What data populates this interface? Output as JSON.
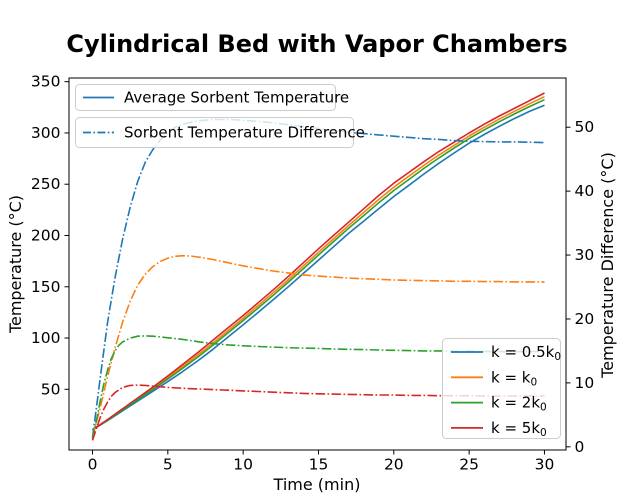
{
  "title": "Cylindrical Bed with Vapor Chambers",
  "chart_data": {
    "type": "line",
    "title": "Cylindrical Bed with Vapor Chambers",
    "xlabel": "Time (min)",
    "ylabel_left": "Temperature (°C)",
    "ylabel_right": "Temperature Difference (°C)",
    "grid": false,
    "xlim": [
      -1.56,
      31.43
    ],
    "ylim_left": [
      -9.2,
      353.6
    ],
    "ylim_right": [
      -0.5,
      57.7
    ],
    "x_ticks": [
      0,
      5,
      10,
      15,
      20,
      25,
      30
    ],
    "x_tick_labels": [
      "0",
      "5",
      "10",
      "15",
      "20",
      "25",
      "30"
    ],
    "y_left_ticks": [
      50,
      100,
      150,
      200,
      250,
      300,
      350
    ],
    "y_left_tick_labels": [
      "50",
      "100",
      "150",
      "200",
      "250",
      "300",
      "350"
    ],
    "y_right_ticks": [
      0,
      10,
      20,
      30,
      40,
      50
    ],
    "y_right_tick_labels": [
      "0",
      "10",
      "20",
      "30",
      "40",
      "50"
    ],
    "colors": {
      "blue": "#1f77b4",
      "orange": "#ff7f0e",
      "green": "#2ca02c",
      "red": "#d62728"
    },
    "legend_styles": {
      "items": [
        {
          "label": "Average Sorbent Temperature",
          "style": "solid"
        },
        {
          "label": "Sorbent Temperature Difference",
          "style": "dashdot"
        }
      ]
    },
    "legend_k": {
      "items": [
        {
          "pre": "k = 0.5k",
          "sub": "0",
          "color": "#1f77b4"
        },
        {
          "pre": "k = k",
          "sub": "0",
          "color": "#ff7f0e"
        },
        {
          "pre": "k = 2k",
          "sub": "0",
          "color": "#2ca02c"
        },
        {
          "pre": "k = 5k",
          "sub": "0",
          "color": "#d62728"
        }
      ]
    },
    "series": [
      {
        "key": "temp-k0p5",
        "label": "k = 0.5k0 average temperature",
        "axis": "left",
        "style": "solid",
        "color": "#1f77b4",
        "t": [
          0,
          1,
          2,
          3,
          4,
          5,
          6,
          7,
          8,
          9,
          10,
          11,
          12,
          13,
          14,
          15,
          16,
          17,
          18,
          19,
          20,
          21,
          22,
          23,
          24,
          25,
          26,
          27,
          28,
          29,
          30
        ],
        "v": [
          10.5,
          19.5,
          29,
          38.5,
          48,
          57.5,
          67.5,
          78,
          89,
          101,
          113,
          125,
          137.5,
          150,
          163,
          176,
          189,
          202,
          214,
          226,
          238,
          249,
          260,
          270.5,
          280.5,
          290,
          298.5,
          306.5,
          314,
          321,
          327
        ]
      },
      {
        "key": "temp-k1",
        "label": "k = k0 average temperature",
        "axis": "left",
        "style": "solid",
        "color": "#ff7f0e",
        "t": [
          0,
          1,
          2,
          3,
          4,
          5,
          6,
          7,
          8,
          9,
          10,
          11,
          12,
          13,
          14,
          15,
          16,
          17,
          18,
          19,
          20,
          21,
          22,
          23,
          24,
          25,
          26,
          27,
          28,
          29,
          30
        ],
        "v": [
          10.5,
          20.2,
          30.4,
          40.6,
          50.8,
          61.4,
          72.4,
          83.6,
          95.3,
          107.3,
          119.3,
          131.7,
          144.2,
          157,
          170.4,
          183.7,
          196.7,
          209.7,
          222.4,
          235.1,
          247.1,
          257.8,
          268.4,
          278.6,
          287.9,
          297,
          305.5,
          313.5,
          321,
          328.4,
          335.4
        ]
      },
      {
        "key": "temp-k2",
        "label": "k = 2k0 average temperature",
        "axis": "left",
        "style": "solid",
        "color": "#2ca02c",
        "t": [
          0,
          1,
          2,
          3,
          4,
          5,
          6,
          7,
          8,
          9,
          10,
          11,
          12,
          13,
          14,
          15,
          16,
          17,
          18,
          19,
          20,
          21,
          22,
          23,
          24,
          25,
          26,
          27,
          28,
          29,
          30
        ],
        "v": [
          10.5,
          20,
          29.9,
          39.9,
          49.8,
          60,
          70.7,
          81.6,
          93.1,
          105.1,
          117.1,
          129.3,
          141.8,
          154.5,
          167.7,
          181,
          194,
          207,
          219.4,
          231.9,
          243.9,
          254.6,
          265.4,
          275.7,
          285.2,
          294.5,
          303,
          311,
          318.5,
          325.7,
          332.4
        ]
      },
      {
        "key": "temp-k5",
        "label": "k = 5k0 average temperature",
        "axis": "left",
        "style": "solid",
        "color": "#d62728",
        "t": [
          0,
          1,
          2,
          3,
          4,
          5,
          6,
          7,
          8,
          9,
          10,
          11,
          12,
          13,
          14,
          15,
          16,
          17,
          18,
          19,
          20,
          21,
          22,
          23,
          24,
          25,
          26,
          27,
          28,
          29,
          30
        ],
        "v": [
          10.5,
          20.5,
          31,
          41.5,
          52,
          63,
          74.5,
          86,
          98,
          110,
          122,
          134.5,
          147,
          160,
          173.5,
          187,
          200,
          213,
          226,
          239,
          251,
          261.5,
          272,
          282,
          291,
          300,
          308.5,
          316.5,
          324,
          331.5,
          339
        ]
      },
      {
        "key": "diff-k0p5",
        "label": "k = 0.5k0 temperature difference",
        "axis": "right",
        "style": "dashdot",
        "color": "#1f77b4",
        "t": [
          0,
          0.25,
          0.5,
          0.75,
          1,
          1.25,
          1.5,
          2,
          2.5,
          3,
          3.5,
          4,
          4.5,
          5,
          5.5,
          6,
          7,
          8,
          9,
          10,
          11,
          12,
          13,
          14,
          15,
          16,
          17,
          18,
          19,
          20,
          21,
          22,
          23,
          24,
          25,
          26,
          27,
          28,
          29,
          30
        ],
        "v": [
          1.5,
          6,
          10.5,
          15,
          19.5,
          23,
          26.5,
          32.5,
          37.5,
          41.5,
          44.5,
          46.5,
          48,
          49.2,
          50,
          50.5,
          51,
          51.2,
          51.2,
          51.1,
          50.9,
          50.7,
          50.4,
          50.1,
          49.8,
          49.5,
          49.2,
          49,
          48.8,
          48.6,
          48.4,
          48.2,
          48.1,
          47.9,
          47.8,
          47.75,
          47.7,
          47.7,
          47.65,
          47.6
        ]
      },
      {
        "key": "diff-k1",
        "label": "k = k0 temperature difference",
        "axis": "right",
        "style": "dashdot",
        "color": "#ff7f0e",
        "t": [
          0,
          0.5,
          1,
          1.5,
          2,
          2.5,
          3,
          3.5,
          4,
          4.5,
          5,
          5.5,
          6,
          6.5,
          7,
          8,
          9,
          10,
          11,
          12,
          13,
          14,
          15,
          16,
          17,
          18,
          19,
          20,
          21,
          22,
          23,
          24,
          25,
          26,
          27,
          28,
          29,
          30
        ],
        "v": [
          1.5,
          6,
          11,
          15.5,
          19.5,
          22.8,
          25.3,
          27,
          28.2,
          29,
          29.5,
          29.8,
          29.9,
          29.85,
          29.7,
          29.3,
          28.8,
          28.3,
          27.9,
          27.5,
          27.2,
          26.9,
          26.7,
          26.55,
          26.4,
          26.3,
          26.2,
          26.1,
          26.05,
          26,
          25.95,
          25.9,
          25.9,
          25.85,
          25.85,
          25.8,
          25.8,
          25.8
        ]
      },
      {
        "key": "diff-k2",
        "label": "k = 2k0 temperature difference",
        "axis": "right",
        "style": "dashdot",
        "color": "#2ca02c",
        "t": [
          0,
          0.25,
          0.5,
          0.75,
          1,
          1.25,
          1.5,
          1.75,
          2,
          2.5,
          3,
          3.5,
          4,
          4.5,
          5,
          6,
          7,
          8,
          9,
          10,
          11,
          12,
          13,
          14,
          15,
          16,
          17,
          18,
          19,
          20,
          21,
          22,
          23,
          24,
          25,
          26,
          27,
          28,
          29,
          30
        ],
        "v": [
          1.2,
          4,
          7,
          9.8,
          12,
          13.8,
          15,
          15.9,
          16.4,
          17,
          17.3,
          17.35,
          17.3,
          17.2,
          17.05,
          16.8,
          16.45,
          16.15,
          15.95,
          15.8,
          15.7,
          15.6,
          15.5,
          15.45,
          15.4,
          15.3,
          15.25,
          15.2,
          15.15,
          15.1,
          15.05,
          15,
          15,
          14.95,
          14.95,
          14.9,
          14.9,
          14.9,
          14.9,
          14.9
        ]
      },
      {
        "key": "diff-k5",
        "label": "k = 5k0 temperature difference",
        "axis": "right",
        "style": "dashdot",
        "color": "#d62728",
        "t": [
          0,
          0.25,
          0.5,
          0.75,
          1,
          1.25,
          1.5,
          2,
          2.5,
          3,
          3.5,
          4,
          5,
          6,
          7,
          8,
          9,
          10,
          11,
          12,
          13,
          14,
          15,
          16,
          17,
          18,
          19,
          20,
          21,
          22,
          23,
          24,
          25,
          26,
          27,
          28,
          29,
          30
        ],
        "v": [
          1,
          2.8,
          4.5,
          5.9,
          7,
          7.9,
          8.5,
          9.3,
          9.6,
          9.65,
          9.6,
          9.5,
          9.3,
          9.15,
          9.05,
          8.95,
          8.85,
          8.75,
          8.65,
          8.55,
          8.45,
          8.35,
          8.3,
          8.25,
          8.2,
          8.15,
          8.1,
          8.1,
          8.05,
          8.05,
          8,
          8,
          8,
          7.95,
          7.95,
          7.95,
          7.95,
          7.95
        ]
      }
    ]
  }
}
